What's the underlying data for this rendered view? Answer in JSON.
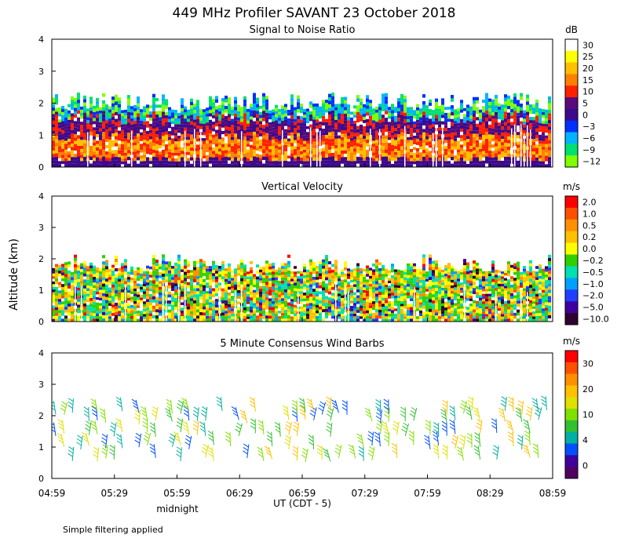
{
  "title": "449 MHz Profiler SAVANT 23 October 2018",
  "y_axis_label": "Altitude (km)",
  "x_axis": {
    "ticks": [
      "04:59",
      "05:29",
      "05:59",
      "06:29",
      "06:59",
      "07:29",
      "07:59",
      "08:29",
      "08:59"
    ],
    "label": "UT  (CDT - 5)",
    "midnight_label": "midnight"
  },
  "footnote": "Simple filtering applied",
  "chart_data": [
    {
      "type": "heatmap",
      "title": "Signal to Noise Ratio",
      "colorbar_unit": "dB",
      "colorbar_labels": [
        "30",
        "25",
        "20",
        "15",
        "10",
        "5",
        "0",
        "−3",
        "−6",
        "−9",
        "−12"
      ],
      "colorbar_colors": [
        "#ffffff",
        "#ffff00",
        "#ffc000",
        "#ff8000",
        "#ff2000",
        "#5a0a7a",
        "#3c0a8c",
        "#0030ff",
        "#00b4ff",
        "#00e070",
        "#80ff00"
      ],
      "ylim": [
        0,
        4
      ],
      "yticks": [
        0,
        1,
        2,
        3,
        4
      ],
      "xlim": [
        "04:59",
        "08:59"
      ],
      "top_altitude_km": 2.0
    },
    {
      "type": "heatmap",
      "title": "Vertical Velocity",
      "colorbar_unit": "m/s",
      "colorbar_labels": [
        "2.0",
        "1.0",
        "0.5",
        "0.2",
        "0.0",
        "−0.2",
        "−0.5",
        "−1.0",
        "−2.0",
        "−5.0",
        "−10.0"
      ],
      "colorbar_colors": [
        "#ff0000",
        "#ff5000",
        "#ff9000",
        "#ffc000",
        "#ffff00",
        "#30d000",
        "#00e0b0",
        "#00a0ff",
        "#2040ff",
        "#4000a0",
        "#300030"
      ],
      "ylim": [
        0,
        4
      ],
      "yticks": [
        0,
        1,
        2,
        3,
        4
      ],
      "xlim": [
        "04:59",
        "08:59"
      ],
      "top_altitude_km": 1.8
    },
    {
      "type": "scatter",
      "title": "5 Minute Consensus Wind Barbs",
      "colorbar_unit": "m/s",
      "colorbar_labels": [
        "30",
        "20",
        "10",
        "4",
        "0"
      ],
      "colorbar_colors": [
        "#ff0000",
        "#ff5000",
        "#ff9000",
        "#ffc000",
        "#e0e000",
        "#80e000",
        "#30c030",
        "#00b0a0",
        "#0050ff",
        "#4000a0",
        "#500060"
      ],
      "ylim": [
        0,
        4
      ],
      "yticks": [
        0,
        1,
        2,
        3,
        4
      ],
      "xlim": [
        "04:59",
        "08:59"
      ],
      "levels_km": [
        0.6,
        1.0,
        1.4,
        1.8,
        2.1
      ]
    }
  ]
}
